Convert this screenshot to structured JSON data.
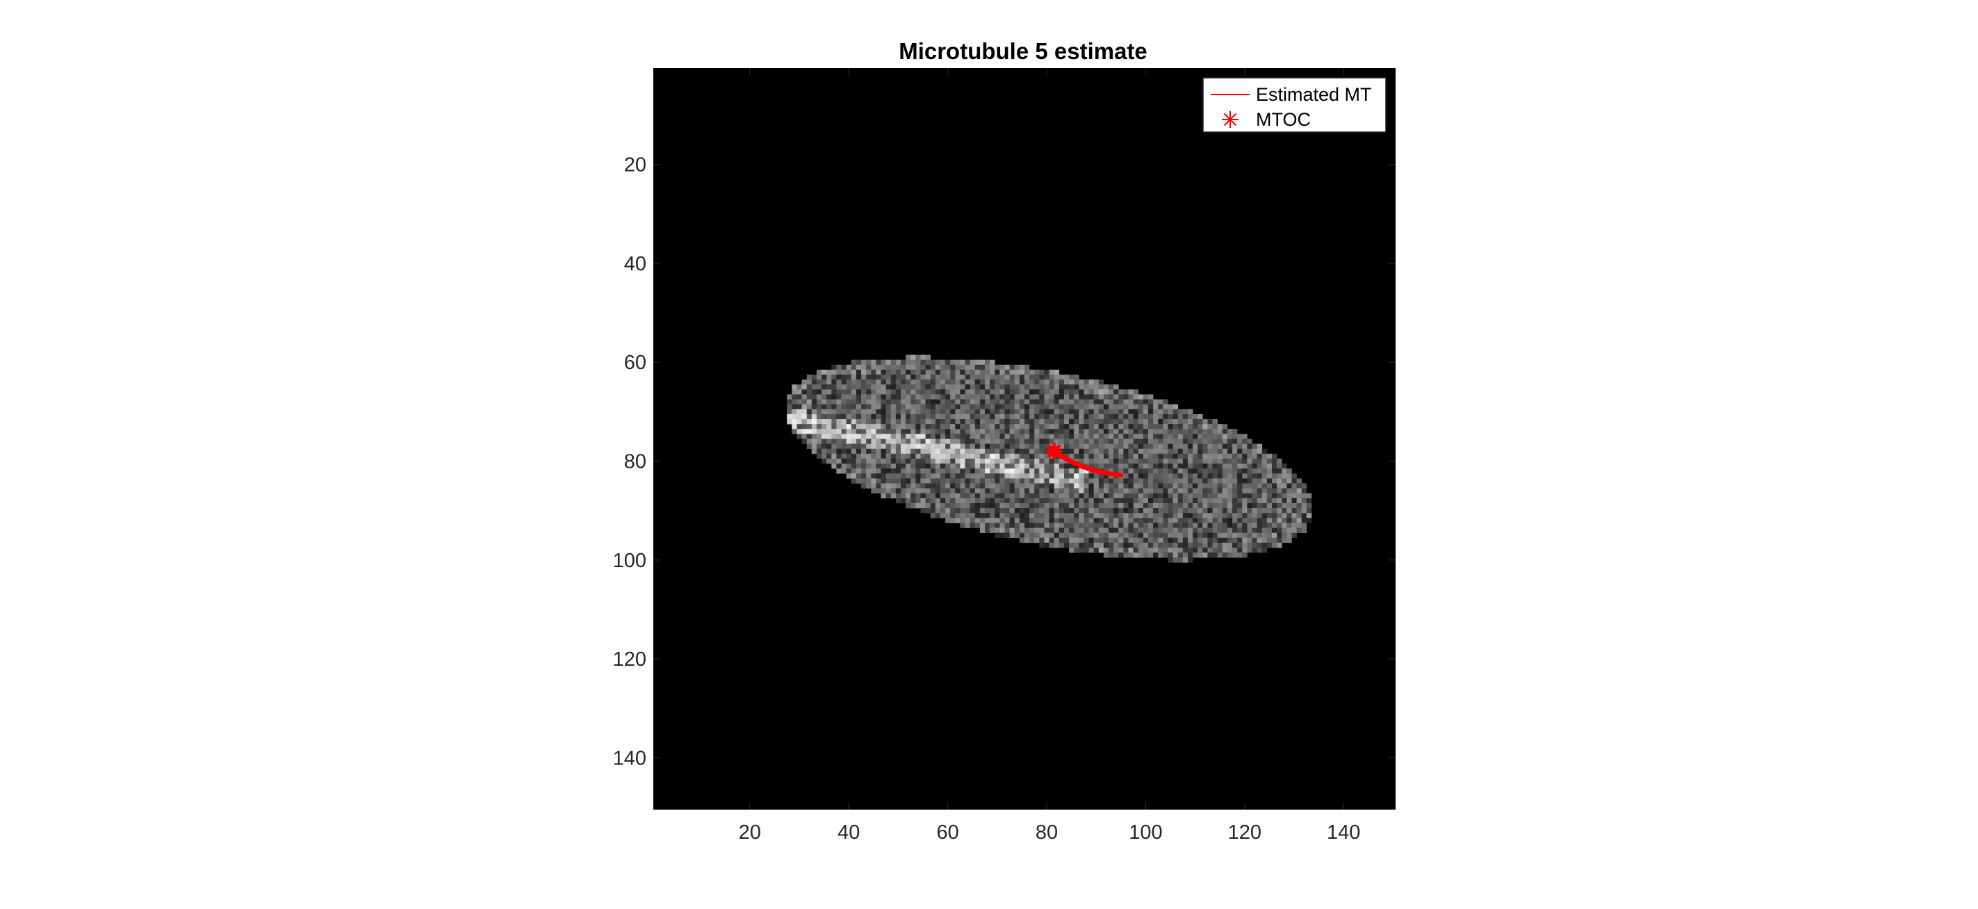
{
  "chart_data": {
    "type": "scatter",
    "title": "Microtubule 5 estimate",
    "xlabel": "",
    "ylabel": "",
    "xlim": [
      0.5,
      150.5
    ],
    "ylim": [
      0.5,
      150.5
    ],
    "y_reversed": true,
    "x_ticks": [
      20,
      40,
      60,
      80,
      100,
      120,
      140
    ],
    "y_ticks": [
      20,
      40,
      60,
      80,
      100,
      120,
      140
    ],
    "x_tick_labels": [
      "20",
      "40",
      "60",
      "80",
      "100",
      "120",
      "140"
    ],
    "y_tick_labels": [
      "20",
      "40",
      "60",
      "80",
      "100",
      "120",
      "140"
    ],
    "image": {
      "description_type": "grayscale fluorescence image",
      "cell_center": [
        80.5,
        79.5
      ],
      "cell_semi_axes": [
        54.5,
        17.5
      ],
      "cell_angle_deg": 12,
      "background": "#000000"
    },
    "series": [
      {
        "name": "Estimated MT",
        "kind": "line",
        "color": "#ff0000",
        "x": [
          81.5,
          83,
          85,
          87,
          89,
          91,
          93,
          95
        ],
        "y": [
          78.0,
          79.0,
          80.1,
          81.0,
          81.7,
          82.2,
          82.6,
          82.9
        ]
      },
      {
        "name": "MTOC",
        "kind": "marker",
        "marker": "asterisk",
        "color": "#ff0000",
        "x": [
          81.5
        ],
        "y": [
          78.0
        ]
      }
    ],
    "legend": {
      "location": "top-right",
      "entries": [
        "Estimated MT",
        "MTOC"
      ]
    },
    "grid": false
  }
}
